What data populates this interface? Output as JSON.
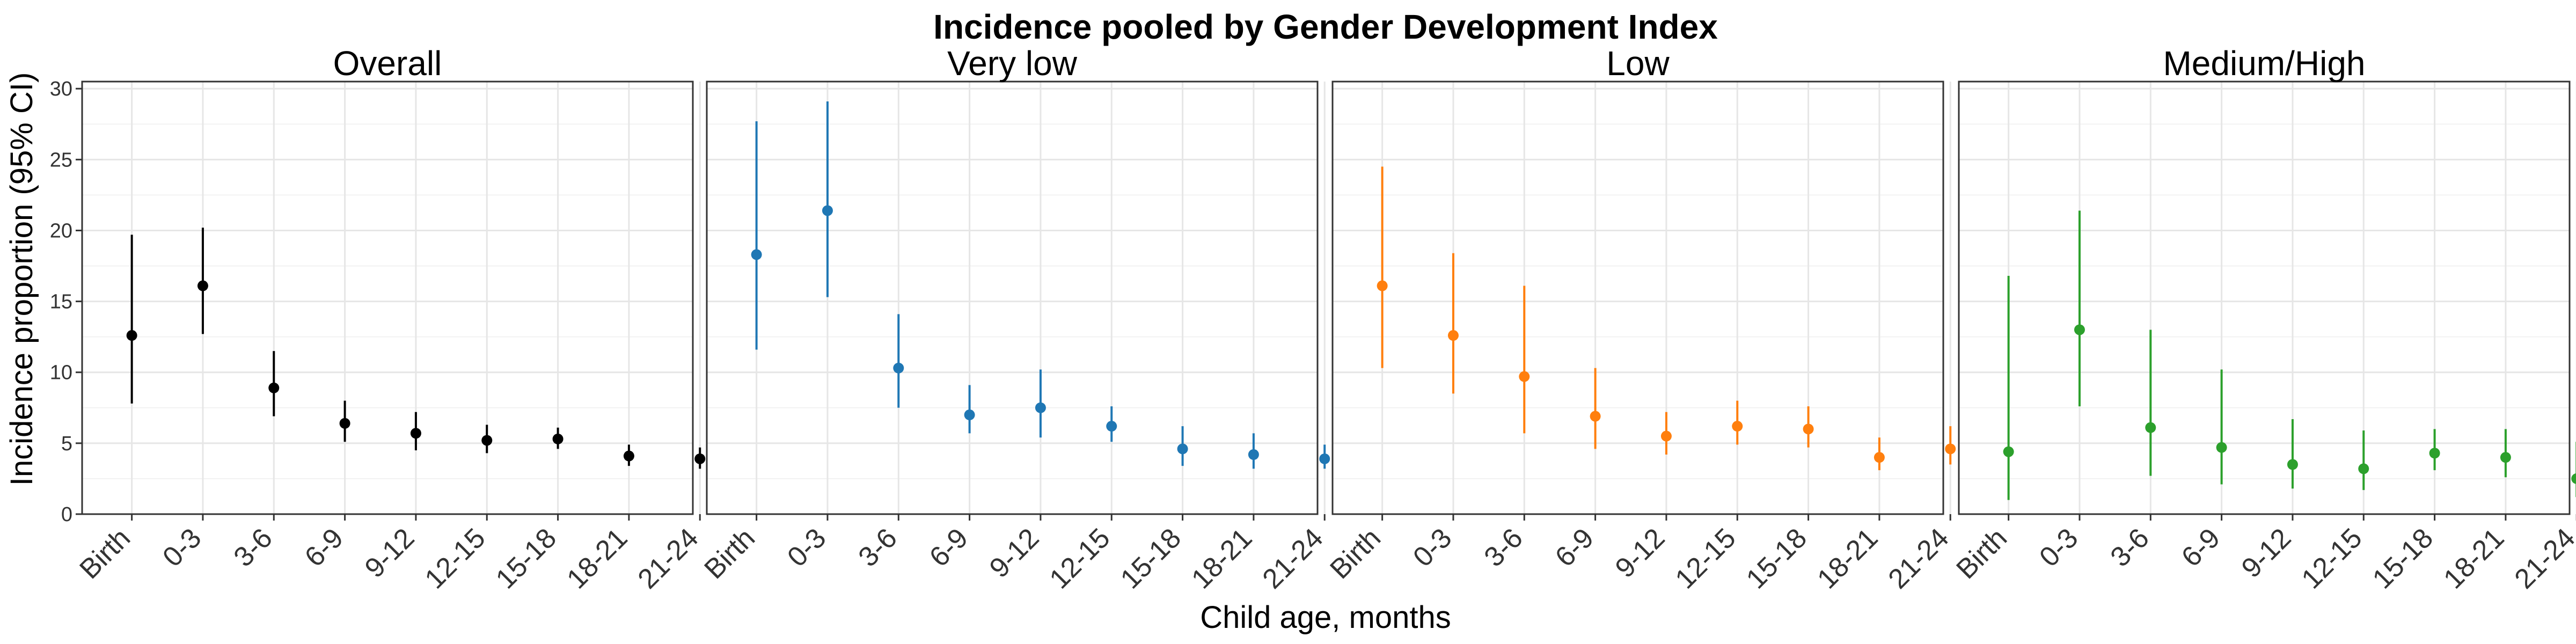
{
  "figure": {
    "title": "Incidence pooled by Gender Development Index",
    "xlabel": "Child age, months",
    "ylabel": "Incidence proportion (95% CI)"
  },
  "chart_data": {
    "type": "scatter",
    "subtype": "point-range (dot with 95% CI error bars), faceted",
    "title": "Incidence pooled by Gender Development Index",
    "xlabel": "Child age, months",
    "ylabel": "Incidence proportion (95% CI)",
    "categories": [
      "Birth",
      "0-3",
      "3-6",
      "6-9",
      "9-12",
      "12-15",
      "15-18",
      "18-21",
      "21-24"
    ],
    "ylim": [
      0,
      30.5
    ],
    "yticks": [
      0,
      5,
      10,
      15,
      20,
      25,
      30
    ],
    "grid": true,
    "legend": "none",
    "x_tick_rotation_deg": 45,
    "panels": [
      {
        "name": "Overall",
        "color": "#000000",
        "estimate": [
          12.6,
          16.1,
          8.9,
          6.4,
          5.7,
          5.2,
          5.3,
          4.1,
          3.9
        ],
        "lower": [
          7.8,
          12.7,
          6.9,
          5.1,
          4.5,
          4.3,
          4.6,
          3.4,
          3.2
        ],
        "upper": [
          19.7,
          20.2,
          11.5,
          8.0,
          7.2,
          6.3,
          6.1,
          4.9,
          4.7
        ]
      },
      {
        "name": "Very low",
        "color": "#1f77b4",
        "estimate": [
          18.3,
          21.4,
          10.3,
          7.0,
          7.5,
          6.2,
          4.6,
          4.2,
          3.9
        ],
        "lower": [
          11.6,
          15.3,
          7.5,
          5.7,
          5.4,
          5.1,
          3.4,
          3.2,
          3.2
        ],
        "upper": [
          27.7,
          29.1,
          14.1,
          9.1,
          10.2,
          7.6,
          6.2,
          5.7,
          4.9
        ]
      },
      {
        "name": "Low",
        "color": "#ff7f0e",
        "estimate": [
          16.1,
          12.6,
          9.7,
          6.9,
          5.5,
          6.2,
          6.0,
          4.0,
          4.6
        ],
        "lower": [
          10.3,
          8.5,
          5.7,
          4.6,
          4.2,
          4.9,
          4.7,
          3.1,
          3.5
        ],
        "upper": [
          24.5,
          18.4,
          16.1,
          10.3,
          7.2,
          8.0,
          7.6,
          5.4,
          6.2
        ]
      },
      {
        "name": "Medium/High",
        "color": "#2ca02c",
        "estimate": [
          4.4,
          13.0,
          6.1,
          4.7,
          3.5,
          3.2,
          4.3,
          4.0,
          2.5
        ],
        "lower": [
          1.0,
          7.6,
          2.7,
          2.1,
          1.8,
          1.7,
          3.1,
          2.6,
          1.2
        ],
        "upper": [
          16.8,
          21.4,
          13.0,
          10.2,
          6.7,
          5.9,
          6.0,
          6.0,
          5.1
        ]
      }
    ]
  }
}
